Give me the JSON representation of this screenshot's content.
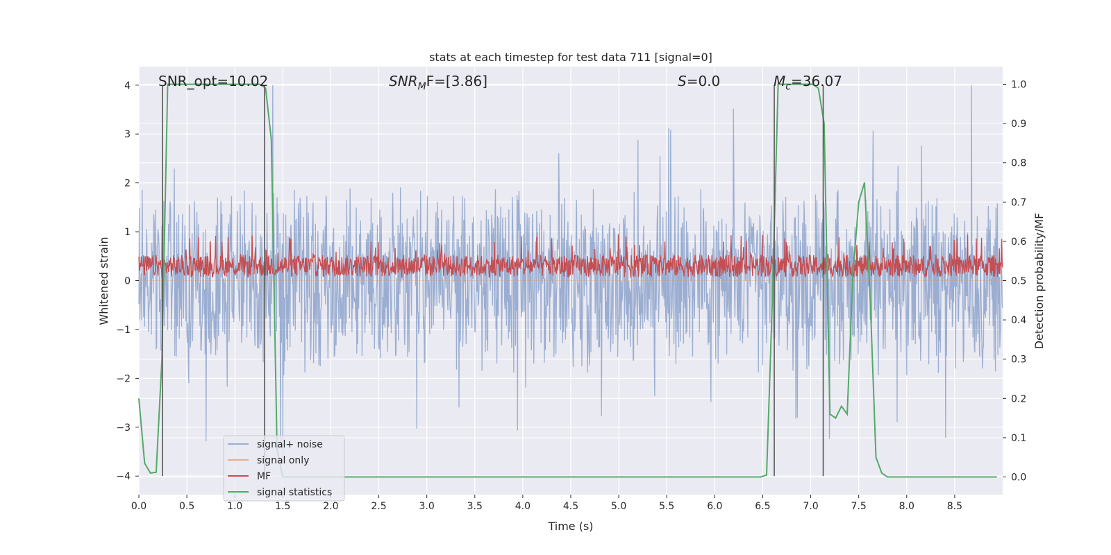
{
  "chart_data": {
    "type": "line",
    "title": "stats at each timestep for test data 711 [signal=0]",
    "xlabel": "Time (s)",
    "ylabel_left": "Whitened strain",
    "ylabel_right": "Detection probability/MF",
    "xlim": [
      0,
      9.0
    ],
    "ylim_left": [
      -4.38,
      4.38
    ],
    "ylim_right": [
      -0.045,
      1.045
    ],
    "x_ticks": [
      "0.0",
      "0.5",
      "1.0",
      "1.5",
      "2.0",
      "2.5",
      "3.0",
      "3.5",
      "4.0",
      "4.5",
      "5.0",
      "5.5",
      "6.0",
      "6.5",
      "7.0",
      "7.5",
      "8.0",
      "8.5"
    ],
    "y_ticks_left": [
      "−4",
      "−3",
      "−2",
      "−1",
      "0",
      "1",
      "2",
      "3",
      "4"
    ],
    "y_ticks_right": [
      "0.0",
      "0.1",
      "0.2",
      "0.3",
      "0.4",
      "0.5",
      "0.6",
      "0.7",
      "0.8",
      "0.9",
      "1.0"
    ],
    "grid": true,
    "legend_position": "lower-left",
    "annotations": {
      "snr_opt": "SNR_opt=10.02",
      "snr_mf_main": "SNR",
      "snr_mf_sub": "M",
      "snr_mf_rest": "F=[3.86]",
      "s_main": "S",
      "s_rest": "=0.0",
      "mc_main": "M",
      "mc_sub": "c",
      "mc_rest": "=36.07"
    },
    "series": [
      {
        "name": "signal+ noise",
        "color": "#4c72b0",
        "axis": "left",
        "description_range": [
          -3.8,
          4.0
        ],
        "sample_interval": 0.005
      },
      {
        "name": "signal only",
        "color": "#dd8452",
        "axis": "left",
        "values_constant": 0
      },
      {
        "name": "MF",
        "color": "#c44e52",
        "axis": "left",
        "band": [
          0.05,
          0.95
        ],
        "sample_interval": 0.005
      },
      {
        "name": "signal statistics",
        "color": "#55a868",
        "axis": "right",
        "x": [
          0.0,
          0.06,
          0.12,
          0.18,
          0.24,
          0.3,
          0.36,
          0.42,
          0.48,
          1.26,
          1.32,
          1.38,
          1.44,
          1.5,
          1.56,
          6.48,
          6.54,
          6.6,
          6.66,
          6.72,
          7.02,
          7.08,
          7.14,
          7.2,
          7.26,
          7.32,
          7.38,
          7.44,
          7.5,
          7.56,
          7.62,
          7.68,
          7.74,
          7.8,
          8.94
        ],
        "y": [
          0.2,
          0.035,
          0.01,
          0.012,
          0.3,
          1.0,
          1.0,
          1.0,
          1.0,
          1.0,
          0.99,
          0.86,
          0.07,
          0.0,
          0.0,
          0.0,
          0.005,
          0.45,
          1.0,
          1.0,
          1.0,
          0.99,
          0.9,
          0.16,
          0.15,
          0.18,
          0.16,
          0.52,
          0.7,
          0.75,
          0.45,
          0.05,
          0.01,
          0.0,
          0.0
        ]
      }
    ],
    "vertical_lines": [
      0.245,
      1.31,
      6.62,
      7.13
    ]
  },
  "legend": {
    "items": [
      {
        "label": "signal+ noise",
        "color": "#4c72b0"
      },
      {
        "label": "signal only",
        "color": "#dd8452"
      },
      {
        "label": "MF",
        "color": "#c44e52"
      },
      {
        "label": "signal statistics",
        "color": "#55a868"
      }
    ]
  }
}
